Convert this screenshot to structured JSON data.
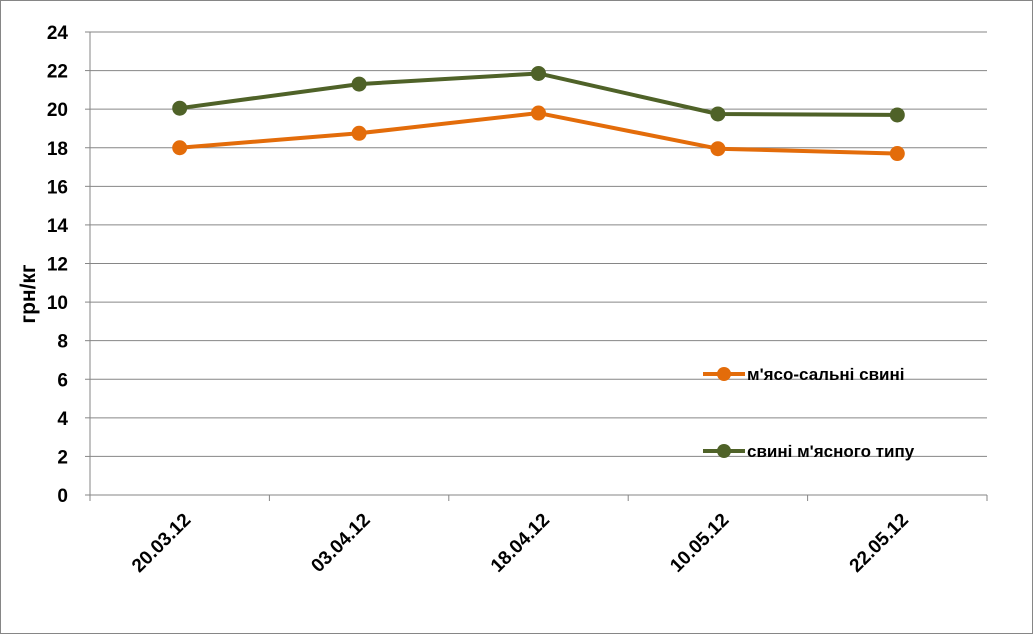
{
  "chart_data": {
    "type": "line",
    "categories": [
      "20.03.12",
      "03.04.12",
      "18.04.12",
      "10.05.12",
      "22.05.12"
    ],
    "series": [
      {
        "name": "м'ясо-сальні свині",
        "values": [
          18.0,
          18.75,
          19.8,
          17.95,
          17.7
        ],
        "color": "#E36C0A"
      },
      {
        "name": "свині м'ясного типу",
        "values": [
          20.05,
          21.3,
          21.85,
          19.75,
          19.7
        ],
        "color": "#4F6228"
      }
    ],
    "ylabel": "грн/кг",
    "ylim": [
      0,
      24
    ],
    "yticks": [
      0,
      2,
      4,
      6,
      8,
      10,
      12,
      14,
      16,
      18,
      20,
      22,
      24
    ],
    "grid": true,
    "legend_position": "right"
  }
}
